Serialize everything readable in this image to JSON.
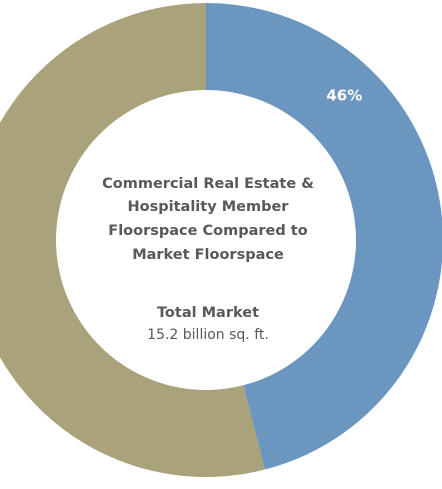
{
  "chart_data": {
    "type": "pie",
    "title": [
      "Commercial Real Estate &",
      "Hospitality Member",
      "Floorspace Compared to",
      "Market Floorspace"
    ],
    "subtitle": "Total Market",
    "annotation": "15.2 billion sq. ft.",
    "values": [
      46,
      54
    ],
    "value_labels": [
      "46%",
      null
    ],
    "colors": [
      "#6b96bf",
      "#aaa27a"
    ],
    "donut": true
  }
}
